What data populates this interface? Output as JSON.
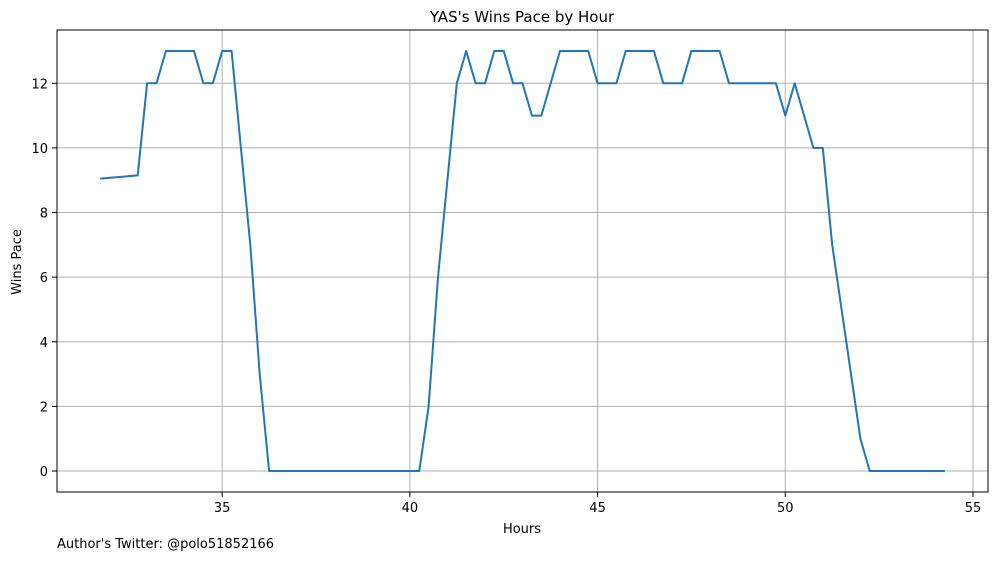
{
  "chart_data": {
    "type": "line",
    "title": "YAS's Wins Pace by Hour",
    "xlabel": "Hours",
    "ylabel": "Wins Pace",
    "xlim": [
      30.6,
      55.4
    ],
    "ylim": [
      -0.65,
      13.65
    ],
    "xticks": [
      35,
      40,
      45,
      50,
      55
    ],
    "yticks": [
      0,
      2,
      4,
      6,
      8,
      10,
      12
    ],
    "grid": true,
    "line_color": "#1f77b4",
    "series": [
      {
        "x": [
          31.75,
          32.75,
          33.0,
          33.25,
          33.5,
          34.0,
          34.25,
          34.5,
          34.75,
          35.0,
          35.25,
          35.5,
          35.75,
          36.0,
          36.25,
          36.5,
          40.25,
          40.5,
          40.75,
          41.0,
          41.25,
          41.5,
          41.75,
          42.0,
          42.25,
          42.5,
          42.75,
          43.0,
          43.25,
          43.5,
          44.0,
          44.75,
          45.0,
          45.5,
          45.75,
          46.5,
          46.75,
          47.25,
          47.5,
          48.25,
          48.5,
          49.75,
          50.0,
          50.25,
          50.75,
          51.0,
          51.25,
          52.0,
          52.25,
          54.25
        ],
        "y": [
          9.05,
          9.15,
          12,
          12,
          13,
          13,
          13,
          12,
          12,
          13,
          13,
          10,
          7,
          3,
          0,
          0,
          0,
          2,
          6,
          9,
          12,
          13,
          12,
          12,
          13,
          13,
          12,
          12,
          11,
          11,
          13,
          13,
          12,
          12,
          13,
          13,
          12,
          12,
          13,
          13,
          12,
          12,
          11,
          12,
          10,
          10,
          7,
          1,
          0,
          0
        ]
      }
    ]
  },
  "footnote": "Author's Twitter: @polo51852166"
}
